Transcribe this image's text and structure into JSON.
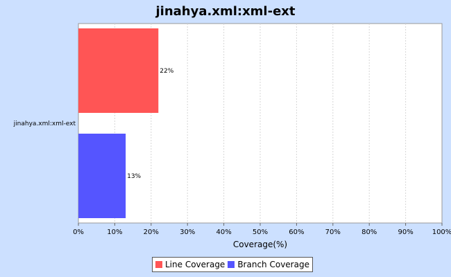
{
  "chart_data": {
    "type": "bar",
    "orientation": "horizontal",
    "title": "jinahya.xml:xml-ext",
    "categories": [
      "jinahya.xml:xml-ext"
    ],
    "series": [
      {
        "name": "Line Coverage",
        "values": [
          22
        ],
        "label": "22%",
        "color": "#ff5555"
      },
      {
        "name": "Branch Coverage",
        "values": [
          13
        ],
        "label": "13%",
        "color": "#5555ff"
      }
    ],
    "xlabel": "Coverage(%)",
    "ylabel": "",
    "xlim": [
      0,
      100
    ],
    "xticks": [
      0,
      10,
      20,
      30,
      40,
      50,
      60,
      70,
      80,
      90,
      100
    ],
    "xtick_labels": [
      "0%",
      "10%",
      "20%",
      "30%",
      "40%",
      "50%",
      "60%",
      "70%",
      "80%",
      "90%",
      "100%"
    ],
    "grid": true,
    "legend": "bottom"
  }
}
